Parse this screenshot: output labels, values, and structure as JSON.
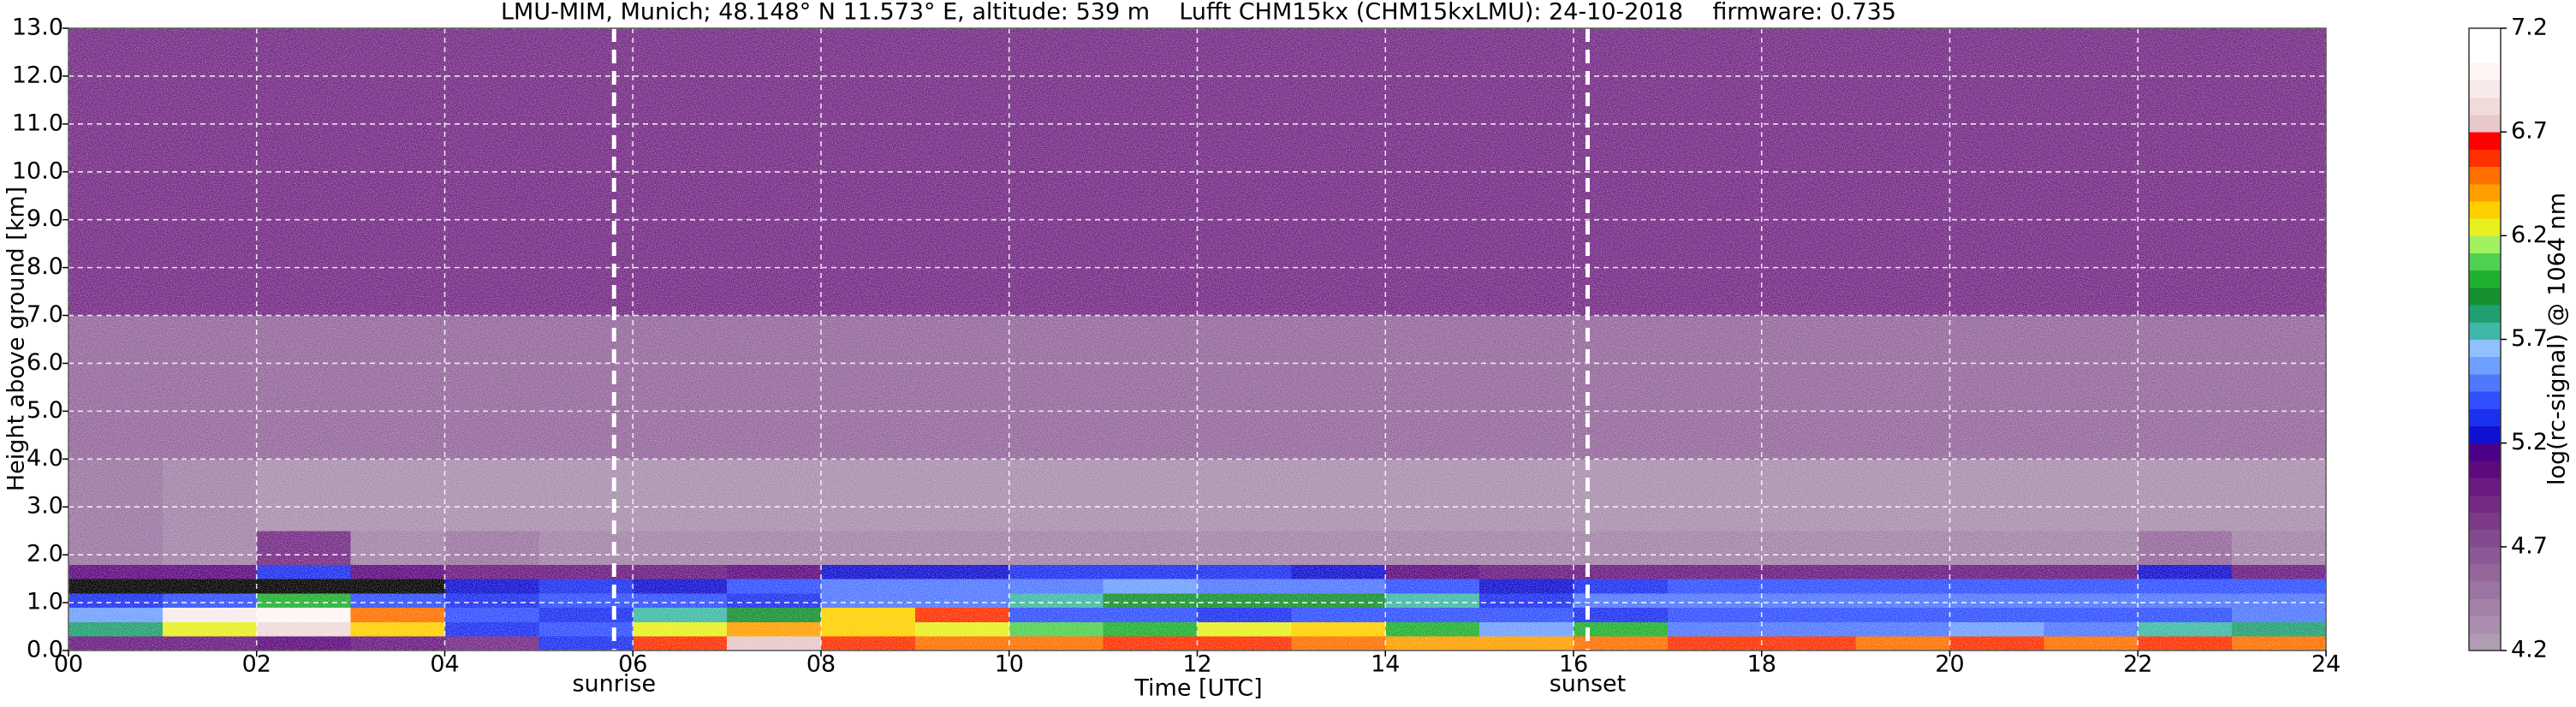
{
  "chart_data": {
    "type": "heatmap",
    "title": "LMU-MIM, Munich; 48.148° N 11.573° E, altitude: 539 m    Lufft CHM15kx (CHM15kxLMU): 24-10-2018    firmware: 0.735",
    "x_label": "Time [UTC]",
    "y_label": "Height above ground [km]",
    "colorbar_label": "log(rc-signal) @ 1064 nm",
    "xlim": [
      0,
      24
    ],
    "xticks": [
      {
        "value": 0,
        "label": "00"
      },
      {
        "value": 2,
        "label": "02"
      },
      {
        "value": 4,
        "label": "04"
      },
      {
        "value": 6,
        "label": "06"
      },
      {
        "value": 8,
        "label": "08"
      },
      10,
      12,
      14,
      16,
      18,
      20,
      22,
      24
    ],
    "ylim": [
      0,
      13
    ],
    "yticks": [
      {
        "value": 0,
        "label": "0.0"
      },
      {
        "value": 1,
        "label": "1.0"
      },
      {
        "value": 2,
        "label": "2.0"
      },
      {
        "value": 3,
        "label": "3.0"
      },
      {
        "value": 4,
        "label": "4.0"
      },
      {
        "value": 5,
        "label": "5.0"
      },
      {
        "value": 6,
        "label": "6.0"
      },
      {
        "value": 7,
        "label": "7.0"
      },
      {
        "value": 8,
        "label": "8.0"
      },
      {
        "value": 9,
        "label": "9.0"
      },
      {
        "value": 10,
        "label": "10.0"
      },
      {
        "value": 11,
        "label": "11.0"
      },
      {
        "value": 12,
        "label": "12.0"
      },
      {
        "value": 13,
        "label": "13.0"
      }
    ],
    "grid": true,
    "clim": [
      4.2,
      7.2
    ],
    "cticks": [
      4.2,
      4.7,
      5.2,
      5.7,
      6.2,
      6.7,
      7.2
    ],
    "under_color": "#000000",
    "colorscale": [
      "#b09cb3",
      "#a98fad",
      "#a283a7",
      "#9b75a1",
      "#94679b",
      "#8c5895",
      "#844a8f",
      "#7c3a89",
      "#742a84",
      "#6a1a80",
      "#5e0a7e",
      "#4a0088",
      "#1010d0",
      "#1c30f0",
      "#3050ff",
      "#5078ff",
      "#70a0ff",
      "#90c0ff",
      "#40b8a8",
      "#20a070",
      "#159030",
      "#20b030",
      "#50d050",
      "#a0f060",
      "#e8f020",
      "#ffd000",
      "#ffa000",
      "#ff7000",
      "#ff3000",
      "#ff0000",
      "#e8c8c8",
      "#f0dada",
      "#f8eaea",
      "#fff4f4",
      "#ffffff",
      "#ffffff"
    ],
    "x_edges": [
      0,
      1,
      2,
      3,
      4,
      5,
      6,
      7,
      8,
      9,
      10,
      11,
      12,
      13,
      14,
      15,
      16,
      17,
      18,
      19,
      20,
      21,
      22,
      23,
      24
    ],
    "y_edges": [
      0,
      0.3,
      0.6,
      0.9,
      1.2,
      1.5,
      1.8,
      2.5,
      4,
      7,
      13
    ],
    "z": [
      [
        5.0,
        5.0,
        5.1,
        5.0,
        4.9,
        5.3,
        6.6,
        6.7,
        6.6,
        6.5,
        6.5,
        6.6,
        6.6,
        6.5,
        6.4,
        6.4,
        6.5,
        6.6,
        6.6,
        6.5,
        6.6,
        6.5,
        6.6,
        6.5
      ],
      [
        5.8,
        6.2,
        6.8,
        6.3,
        5.3,
        5.4,
        6.2,
        6.4,
        6.3,
        6.2,
        6.1,
        6.0,
        6.2,
        6.3,
        6.0,
        5.6,
        6.0,
        5.5,
        5.5,
        5.5,
        5.6,
        5.5,
        5.7,
        5.8
      ],
      [
        5.6,
        6.9,
        7.0,
        6.5,
        5.4,
        5.3,
        5.7,
        5.9,
        6.3,
        6.6,
        5.4,
        5.4,
        5.3,
        5.4,
        5.4,
        5.4,
        5.3,
        5.4,
        5.4,
        5.4,
        5.4,
        5.4,
        5.4,
        5.5
      ],
      [
        5.3,
        5.4,
        6.0,
        5.4,
        5.3,
        5.4,
        5.4,
        5.3,
        5.5,
        5.5,
        5.7,
        5.9,
        5.9,
        5.9,
        5.7,
        5.3,
        5.5,
        5.5,
        5.5,
        5.5,
        5.5,
        5.5,
        5.5,
        5.5
      ],
      [
        4.0,
        4.0,
        4.1,
        4.0,
        5.2,
        5.3,
        5.2,
        5.4,
        5.5,
        5.5,
        5.5,
        5.6,
        5.5,
        5.5,
        5.4,
        5.2,
        5.3,
        5.4,
        5.4,
        5.4,
        5.4,
        5.4,
        5.4,
        5.4
      ],
      [
        5.1,
        5.1,
        5.3,
        5.1,
        5.0,
        5.0,
        5.0,
        5.1,
        5.2,
        5.2,
        5.3,
        5.3,
        5.3,
        5.2,
        5.1,
        5.0,
        5.0,
        5.0,
        5.0,
        5.0,
        5.0,
        5.0,
        5.2,
        5.0
      ],
      [
        4.5,
        4.4,
        4.9,
        4.4,
        4.5,
        4.4,
        4.4,
        4.4,
        4.4,
        4.4,
        4.4,
        4.4,
        4.4,
        4.4,
        4.4,
        4.4,
        4.4,
        4.4,
        4.4,
        4.4,
        4.4,
        4.4,
        4.6,
        4.4
      ],
      [
        4.5,
        4.4,
        4.3,
        4.3,
        4.3,
        4.3,
        4.3,
        4.3,
        4.3,
        4.3,
        4.3,
        4.3,
        4.3,
        4.3,
        4.3,
        4.3,
        4.3,
        4.3,
        4.3,
        4.3,
        4.3,
        4.3,
        4.3,
        4.3
      ],
      [
        4.6,
        4.6,
        4.6,
        4.6,
        4.6,
        4.6,
        4.6,
        4.6,
        4.6,
        4.6,
        4.6,
        4.6,
        4.6,
        4.6,
        4.6,
        4.6,
        4.6,
        4.6,
        4.6,
        4.6,
        4.6,
        4.6,
        4.6,
        4.6
      ],
      [
        4.9,
        4.9,
        4.9,
        4.9,
        4.9,
        4.9,
        4.9,
        4.9,
        4.9,
        4.9,
        4.9,
        4.9,
        4.9,
        4.9,
        4.9,
        4.9,
        4.9,
        4.9,
        4.9,
        4.9,
        4.9,
        4.9,
        4.9,
        4.9
      ]
    ],
    "annotations": [
      {
        "label": "sunrise",
        "x": 5.8
      },
      {
        "label": "sunset",
        "x": 16.15
      }
    ]
  }
}
